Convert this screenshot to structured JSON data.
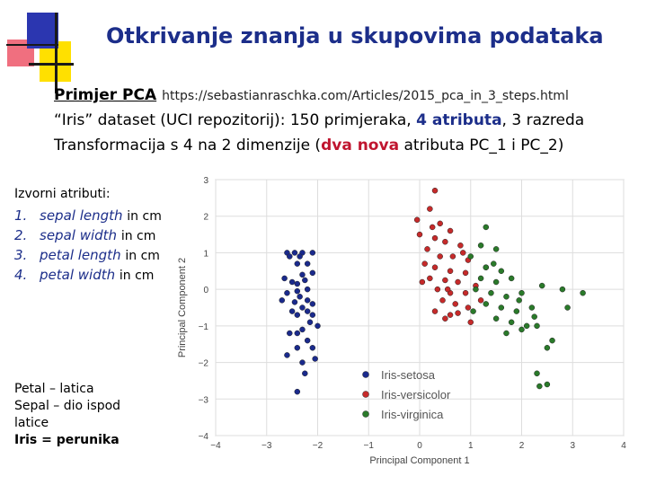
{
  "slide": {
    "title": "Otkrivanje znanja u skupovima podataka",
    "line1": {
      "label": "Primjer PCA",
      "url": "https://sebastianraschka.com/Articles/2015_pca_in_3_steps.html"
    },
    "line2": {
      "pre": "“Iris” dataset (UCI repozitorij): 150 primjeraka, ",
      "hl": "4 atributa",
      "post": ", 3 razreda"
    },
    "line3": {
      "pre": "Transformacija s 4 na 2 dimenzije (",
      "hl": "dva nova",
      "post": " atributa PC_1 i PC_2)"
    }
  },
  "side": {
    "heading": "Izvorni atributi:",
    "attributes": [
      {
        "num": "1.",
        "name": "sepal length",
        "unit": "in cm"
      },
      {
        "num": "2.",
        "name": "sepal width",
        "unit": "in cm"
      },
      {
        "num": "3.",
        "name": "petal length",
        "unit": "in cm"
      },
      {
        "num": "4.",
        "name": "petal width",
        "unit": "in cm"
      }
    ],
    "glossary": [
      "Petal – latica",
      "Sepal – dio ispod latice",
      "Iris = perunika"
    ]
  },
  "colors": {
    "title": "#1c2e8a",
    "highlight_red": "#c0152f",
    "setosa": "#1a2a8c",
    "versicolor": "#c62a2a",
    "virginica": "#2a7a2a"
  },
  "chart_data": {
    "type": "scatter",
    "xlabel": "Principal Component 1",
    "ylabel": "Principal Component 2",
    "xlim": [
      -4,
      4
    ],
    "ylim": [
      -4,
      3
    ],
    "xticks": [
      -4,
      -3,
      -2,
      -1,
      0,
      1,
      2,
      3,
      4
    ],
    "yticks": [
      -4,
      -3,
      -2,
      -1,
      0,
      1,
      2,
      3
    ],
    "grid": true,
    "legend_position": "bottom-right",
    "series": [
      {
        "name": "Iris-setosa",
        "color": "#1a2a8c",
        "points": [
          [
            -2.6,
            1.0
          ],
          [
            -2.45,
            1.0
          ],
          [
            -2.3,
            1.0
          ],
          [
            -2.1,
            1.0
          ],
          [
            -2.55,
            0.9
          ],
          [
            -2.35,
            0.9
          ],
          [
            -2.2,
            0.7
          ],
          [
            -2.4,
            0.7
          ],
          [
            -2.3,
            0.4
          ],
          [
            -2.1,
            0.45
          ],
          [
            -2.5,
            0.2
          ],
          [
            -2.4,
            0.15
          ],
          [
            -2.25,
            0.25
          ],
          [
            -2.2,
            0.0
          ],
          [
            -2.4,
            -0.05
          ],
          [
            -2.6,
            -0.1
          ],
          [
            -2.35,
            -0.2
          ],
          [
            -2.2,
            -0.3
          ],
          [
            -2.1,
            -0.4
          ],
          [
            -2.3,
            -0.5
          ],
          [
            -2.5,
            -0.6
          ],
          [
            -2.2,
            -0.6
          ],
          [
            -2.1,
            -0.7
          ],
          [
            -2.4,
            -0.7
          ],
          [
            -2.15,
            -0.9
          ],
          [
            -2.3,
            -1.1
          ],
          [
            -2.4,
            -1.2
          ],
          [
            -2.2,
            -1.4
          ],
          [
            -2.4,
            -1.6
          ],
          [
            -2.3,
            -2.0
          ],
          [
            -2.05,
            -1.9
          ],
          [
            -2.1,
            -1.6
          ],
          [
            -2.6,
            -1.8
          ],
          [
            -2.25,
            -2.3
          ],
          [
            -2.4,
            -2.8
          ],
          [
            -2.55,
            -1.2
          ],
          [
            -2.7,
            -0.3
          ],
          [
            -2.65,
            0.3
          ],
          [
            -2.0,
            -1.0
          ],
          [
            -2.45,
            -0.35
          ]
        ]
      },
      {
        "name": "Iris-versicolor",
        "color": "#c62a2a",
        "points": [
          [
            0.3,
            2.7
          ],
          [
            0.2,
            2.2
          ],
          [
            -0.05,
            1.9
          ],
          [
            0.4,
            1.8
          ],
          [
            0.6,
            1.6
          ],
          [
            0.0,
            1.5
          ],
          [
            0.3,
            1.4
          ],
          [
            0.5,
            1.3
          ],
          [
            0.8,
            1.2
          ],
          [
            0.15,
            1.1
          ],
          [
            0.4,
            0.9
          ],
          [
            0.65,
            0.9
          ],
          [
            0.95,
            0.8
          ],
          [
            0.1,
            0.7
          ],
          [
            0.3,
            0.6
          ],
          [
            0.6,
            0.5
          ],
          [
            0.9,
            0.45
          ],
          [
            0.2,
            0.3
          ],
          [
            0.5,
            0.25
          ],
          [
            0.75,
            0.2
          ],
          [
            0.35,
            0.0
          ],
          [
            0.6,
            -0.1
          ],
          [
            0.9,
            -0.1
          ],
          [
            0.45,
            -0.3
          ],
          [
            0.7,
            -0.4
          ],
          [
            0.95,
            -0.5
          ],
          [
            0.3,
            -0.6
          ],
          [
            0.6,
            -0.7
          ],
          [
            0.5,
            -0.8
          ],
          [
            1.0,
            -0.9
          ],
          [
            1.2,
            -0.3
          ],
          [
            1.1,
            0.1
          ],
          [
            0.85,
            1.0
          ],
          [
            0.25,
            1.7
          ],
          [
            0.55,
            0.0
          ],
          [
            0.75,
            -0.65
          ],
          [
            1.3,
            0.6
          ],
          [
            0.05,
            0.2
          ]
        ]
      },
      {
        "name": "Iris-virginica",
        "color": "#2a7a2a",
        "points": [
          [
            1.3,
            1.7
          ],
          [
            1.2,
            1.2
          ],
          [
            1.5,
            1.1
          ],
          [
            1.0,
            0.9
          ],
          [
            1.3,
            0.6
          ],
          [
            1.6,
            0.5
          ],
          [
            1.2,
            0.3
          ],
          [
            1.5,
            0.2
          ],
          [
            1.8,
            0.3
          ],
          [
            1.1,
            0.0
          ],
          [
            1.4,
            -0.1
          ],
          [
            1.7,
            -0.2
          ],
          [
            2.0,
            -0.1
          ],
          [
            1.3,
            -0.4
          ],
          [
            1.6,
            -0.5
          ],
          [
            1.9,
            -0.6
          ],
          [
            2.2,
            -0.5
          ],
          [
            2.4,
            0.1
          ],
          [
            2.8,
            0.0
          ],
          [
            3.2,
            -0.1
          ],
          [
            1.5,
            -0.8
          ],
          [
            1.8,
            -0.9
          ],
          [
            2.1,
            -1.0
          ],
          [
            2.3,
            -1.0
          ],
          [
            1.7,
            -1.2
          ],
          [
            2.0,
            -1.1
          ],
          [
            2.6,
            -1.4
          ],
          [
            2.5,
            -1.6
          ],
          [
            2.3,
            -2.3
          ],
          [
            2.5,
            -2.6
          ],
          [
            2.35,
            -2.65
          ],
          [
            2.9,
            -0.5
          ],
          [
            1.95,
            -0.3
          ],
          [
            2.25,
            -0.75
          ],
          [
            1.45,
            0.7
          ],
          [
            1.05,
            -0.6
          ]
        ]
      }
    ]
  }
}
